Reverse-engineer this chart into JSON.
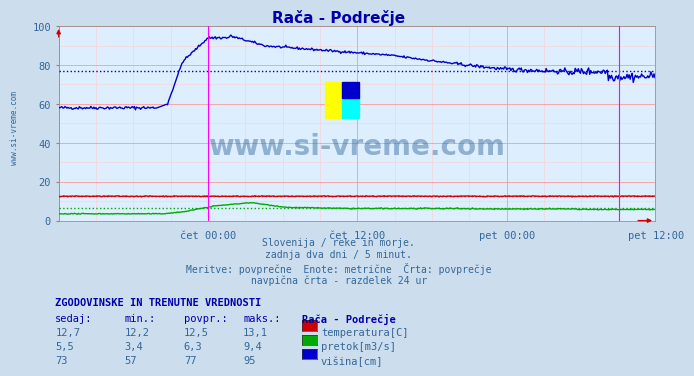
{
  "title": "Rača - Podrečje",
  "bg_color": "#ccdded",
  "plot_bg_color": "#ddeeff",
  "grid_color_major": "#ffaaaa",
  "grid_color_minor": "#ffdddd",
  "text_color": "#336699",
  "xlabel_ticks": [
    "čet 00:00",
    "čet 12:00",
    "pet 00:00",
    "pet 12:00"
  ],
  "total_points": 576,
  "ylim": [
    0,
    100
  ],
  "yticks": [
    0,
    20,
    40,
    60,
    80,
    100
  ],
  "avg_line_blue": 77,
  "avg_line_red": 12.5,
  "avg_line_green": 6.3,
  "magenta_vline1_idx": 144,
  "magenta_vline2_idx": 540,
  "watermark_text": "www.si-vreme.com",
  "sub_text1": "Slovenija / reke in morje.",
  "sub_text2": "zadnja dva dni / 5 minut.",
  "sub_text3": "Meritve: povprečne  Enote: metrične  Črta: povprečje",
  "sub_text4": "navpična črta - razdelek 24 ur",
  "legend_title": "ZGODOVINSKE IN TRENUTNE VREDNOSTI",
  "legend_header": [
    "sedaj:",
    "min.:",
    "povpr.:",
    "maks.:",
    "Rača - Podrečje"
  ],
  "legend_rows": [
    [
      "12,7",
      "12,2",
      "12,5",
      "13,1",
      "temperatura[C]",
      "#cc0000"
    ],
    [
      "5,5",
      "3,4",
      "6,3",
      "9,4",
      "pretok[m3/s]",
      "#00aa00"
    ],
    [
      "73",
      "57",
      "77",
      "95",
      "višina[cm]",
      "#0000cc"
    ]
  ],
  "sidebar_text": "www.si-vreme.com",
  "sidebar_color": "#336699",
  "line_blue": "#0000cc",
  "line_red": "#cc0000",
  "line_green": "#00aa00"
}
